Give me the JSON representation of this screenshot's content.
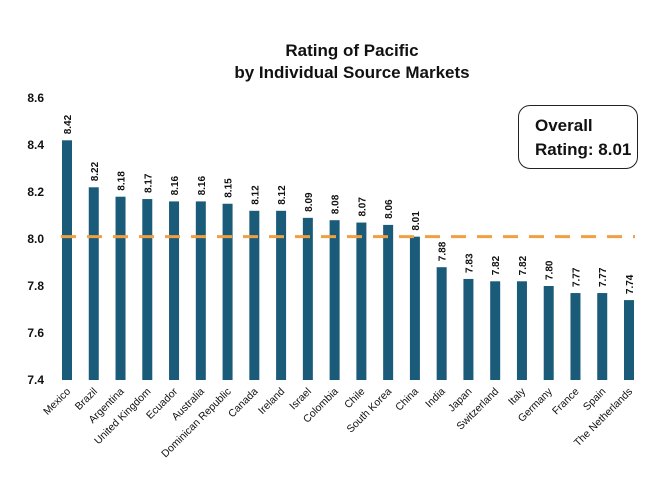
{
  "chart_data": {
    "type": "bar",
    "title": [
      "Rating of Pacific",
      "by Individual Source Markets"
    ],
    "categories": [
      "Mexico",
      "Brazil",
      "Argentina",
      "United Kingdom",
      "Ecuador",
      "Australia",
      "Dominican Republic",
      "Canada",
      "Ireland",
      "Israel",
      "Colombia",
      "Chile",
      "South Korea",
      "China",
      "India",
      "Japan",
      "Switzerland",
      "Italy",
      "Germany",
      "France",
      "Spain",
      "The Netherlands"
    ],
    "values": [
      8.42,
      8.22,
      8.18,
      8.17,
      8.16,
      8.16,
      8.15,
      8.12,
      8.12,
      8.09,
      8.08,
      8.07,
      8.06,
      8.01,
      7.88,
      7.83,
      7.82,
      7.82,
      7.8,
      7.77,
      7.77,
      7.74
    ],
    "value_labels": [
      "8.42",
      "8.22",
      "8.18",
      "8.17",
      "8.16",
      "8.16",
      "8.15",
      "8.12",
      "8.12",
      "8.09",
      "8.08",
      "8.07",
      "8.06",
      "8.01",
      "7.88",
      "7.83",
      "7.82",
      "7.82",
      "7.80",
      "7.77",
      "7.77",
      "7.74"
    ],
    "ylim": [
      7.4,
      8.6
    ],
    "yticks": [
      "8.6",
      "8.4",
      "8.2",
      "8.0",
      "7.8",
      "7.6",
      "7.4"
    ],
    "reference_line": 8.01,
    "xlabel": "",
    "ylabel": "",
    "grid": false,
    "colors": {
      "bar": "#1b5b7a",
      "reference": "#f0a040"
    }
  },
  "overall_box": {
    "line1": "Overall",
    "line2": "Rating: 8.01"
  }
}
